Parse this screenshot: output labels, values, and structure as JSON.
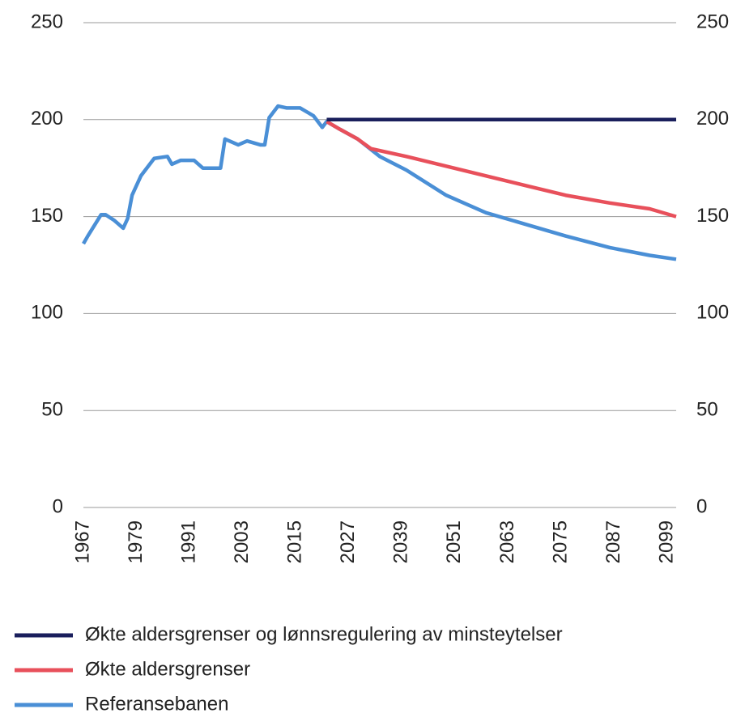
{
  "chart_data": {
    "type": "line",
    "xlim": [
      1967,
      2101
    ],
    "xticks": [
      1967,
      1979,
      1991,
      2003,
      2015,
      2027,
      2039,
      2051,
      2063,
      2075,
      2087,
      2099
    ],
    "ylim": [
      0,
      250
    ],
    "yticks": [
      0,
      50,
      100,
      150,
      200,
      250
    ],
    "y2lim": [
      0,
      250
    ],
    "y2ticks": [
      0,
      50,
      100,
      150,
      200,
      250
    ],
    "grid": true,
    "legend": "bottom",
    "series": [
      {
        "name": "Økte aldersgrenser og lønnsregulering av minsteytelser",
        "color": "#1a1f5c",
        "x": [
          2022,
          2101
        ],
        "values": [
          200,
          200
        ]
      },
      {
        "name": "Økte aldersgrenser",
        "color": "#e8505b",
        "x": [
          2022,
          2025,
          2029,
          2032,
          2040,
          2049,
          2058,
          2067,
          2076,
          2086,
          2095,
          2101
        ],
        "values": [
          199,
          195,
          190,
          185,
          181,
          176,
          171,
          166,
          161,
          157,
          154,
          150
        ]
      },
      {
        "name": "Referansebanen",
        "color": "#4a8fd6",
        "x": [
          1967,
          1968,
          1971,
          1972,
          1974,
          1976,
          1977,
          1978,
          1980,
          1982,
          1983,
          1986,
          1987,
          1989,
          1992,
          1994,
          1998,
          1999,
          2002,
          2004,
          2007,
          2008,
          2009,
          2011,
          2013,
          2016,
          2019,
          2021,
          2022,
          2025,
          2029,
          2034,
          2040,
          2049,
          2058,
          2067,
          2076,
          2086,
          2095,
          2101
        ],
        "values": [
          136,
          140,
          151,
          151,
          148,
          144,
          149,
          161,
          171,
          177,
          180,
          181,
          177,
          179,
          179,
          175,
          175,
          190,
          187,
          189,
          187,
          187,
          201,
          207,
          206,
          206,
          202,
          196,
          199,
          195,
          190,
          181,
          174,
          161,
          152,
          146,
          140,
          134,
          130,
          128
        ]
      }
    ]
  }
}
